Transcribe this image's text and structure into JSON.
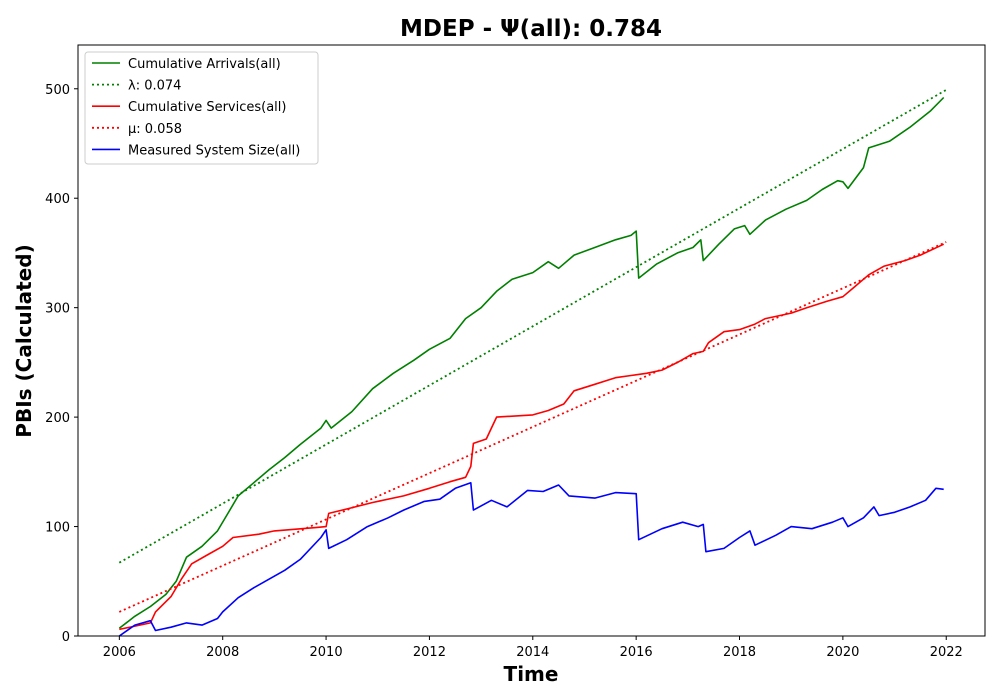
{
  "chart_data": {
    "type": "line",
    "title": "MDEP -  Ψ(all): 0.784",
    "xlabel": "Time",
    "ylabel": "PBIs (Calculated)",
    "xlim": [
      2005.2,
      2022.75
    ],
    "ylim": [
      0,
      540
    ],
    "x_ticks": [
      2006,
      2008,
      2010,
      2012,
      2014,
      2016,
      2018,
      2020,
      2022
    ],
    "y_ticks": [
      0,
      100,
      200,
      300,
      400,
      500
    ],
    "grid": false,
    "legend_position": "top-left",
    "series": [
      {
        "name": "Cumulative Arrivals(all)",
        "color": "#008000",
        "style": "solid",
        "points": [
          [
            2006.0,
            7
          ],
          [
            2006.3,
            18
          ],
          [
            2006.6,
            27
          ],
          [
            2006.9,
            38
          ],
          [
            2007.1,
            50
          ],
          [
            2007.3,
            72
          ],
          [
            2007.6,
            82
          ],
          [
            2007.9,
            96
          ],
          [
            2008.1,
            112
          ],
          [
            2008.3,
            128
          ],
          [
            2008.6,
            140
          ],
          [
            2008.9,
            152
          ],
          [
            2009.2,
            163
          ],
          [
            2009.5,
            175
          ],
          [
            2009.9,
            190
          ],
          [
            2010.0,
            197
          ],
          [
            2010.1,
            190
          ],
          [
            2010.5,
            205
          ],
          [
            2010.9,
            226
          ],
          [
            2011.3,
            240
          ],
          [
            2011.7,
            252
          ],
          [
            2012.0,
            262
          ],
          [
            2012.4,
            272
          ],
          [
            2012.7,
            290
          ],
          [
            2013.0,
            300
          ],
          [
            2013.3,
            315
          ],
          [
            2013.6,
            326
          ],
          [
            2014.0,
            332
          ],
          [
            2014.3,
            342
          ],
          [
            2014.5,
            336
          ],
          [
            2014.8,
            348
          ],
          [
            2015.2,
            355
          ],
          [
            2015.6,
            362
          ],
          [
            2015.9,
            366
          ],
          [
            2016.0,
            370
          ],
          [
            2016.05,
            327
          ],
          [
            2016.4,
            340
          ],
          [
            2016.8,
            350
          ],
          [
            2017.1,
            355
          ],
          [
            2017.25,
            362
          ],
          [
            2017.3,
            343
          ],
          [
            2017.6,
            358
          ],
          [
            2017.9,
            372
          ],
          [
            2018.1,
            375
          ],
          [
            2018.2,
            367
          ],
          [
            2018.5,
            380
          ],
          [
            2018.9,
            390
          ],
          [
            2019.3,
            398
          ],
          [
            2019.6,
            408
          ],
          [
            2019.9,
            416
          ],
          [
            2020.0,
            415
          ],
          [
            2020.1,
            409
          ],
          [
            2020.4,
            428
          ],
          [
            2020.5,
            446
          ],
          [
            2020.9,
            452
          ],
          [
            2021.3,
            465
          ],
          [
            2021.7,
            480
          ],
          [
            2021.95,
            492
          ]
        ]
      },
      {
        "name": "λ: 0.074",
        "color": "#008000",
        "style": "dotted",
        "points": [
          [
            2006.0,
            67
          ],
          [
            2022.0,
            499
          ]
        ]
      },
      {
        "name": "Cumulative Services(all)",
        "color": "#ff0000",
        "style": "solid",
        "points": [
          [
            2006.0,
            6
          ],
          [
            2006.6,
            12
          ],
          [
            2006.7,
            22
          ],
          [
            2007.0,
            36
          ],
          [
            2007.2,
            52
          ],
          [
            2007.4,
            66
          ],
          [
            2007.7,
            74
          ],
          [
            2008.0,
            82
          ],
          [
            2008.2,
            90
          ],
          [
            2008.7,
            93
          ],
          [
            2009.0,
            96
          ],
          [
            2009.8,
            99
          ],
          [
            2010.0,
            100
          ],
          [
            2010.05,
            112
          ],
          [
            2010.4,
            116
          ],
          [
            2010.9,
            122
          ],
          [
            2011.5,
            128
          ],
          [
            2012.0,
            135
          ],
          [
            2012.4,
            141
          ],
          [
            2012.7,
            145
          ],
          [
            2012.8,
            155
          ],
          [
            2012.85,
            176
          ],
          [
            2013.1,
            180
          ],
          [
            2013.2,
            190
          ],
          [
            2013.3,
            200
          ],
          [
            2014.0,
            202
          ],
          [
            2014.3,
            206
          ],
          [
            2014.6,
            212
          ],
          [
            2014.8,
            224
          ],
          [
            2015.2,
            230
          ],
          [
            2015.6,
            236
          ],
          [
            2015.9,
            238
          ],
          [
            2016.2,
            240
          ],
          [
            2016.5,
            243
          ],
          [
            2016.8,
            250
          ],
          [
            2017.1,
            258
          ],
          [
            2017.3,
            260
          ],
          [
            2017.4,
            268
          ],
          [
            2017.7,
            278
          ],
          [
            2018.0,
            280
          ],
          [
            2018.3,
            285
          ],
          [
            2018.5,
            290
          ],
          [
            2019.0,
            295
          ],
          [
            2019.3,
            300
          ],
          [
            2019.7,
            306
          ],
          [
            2020.0,
            310
          ],
          [
            2020.2,
            318
          ],
          [
            2020.5,
            330
          ],
          [
            2020.8,
            338
          ],
          [
            2021.2,
            343
          ],
          [
            2021.5,
            348
          ],
          [
            2021.95,
            358
          ]
        ]
      },
      {
        "name": "μ: 0.058",
        "color": "#ff0000",
        "style": "dotted",
        "points": [
          [
            2006.0,
            22
          ],
          [
            2022.0,
            360
          ]
        ]
      },
      {
        "name": "Measured System Size(all)",
        "color": "#0000ff",
        "style": "solid",
        "points": [
          [
            2006.0,
            0
          ],
          [
            2006.3,
            10
          ],
          [
            2006.6,
            14
          ],
          [
            2006.7,
            5
          ],
          [
            2007.0,
            8
          ],
          [
            2007.3,
            12
          ],
          [
            2007.6,
            10
          ],
          [
            2007.9,
            16
          ],
          [
            2008.0,
            22
          ],
          [
            2008.3,
            35
          ],
          [
            2008.6,
            44
          ],
          [
            2008.9,
            52
          ],
          [
            2009.2,
            60
          ],
          [
            2009.5,
            70
          ],
          [
            2009.9,
            90
          ],
          [
            2010.0,
            97
          ],
          [
            2010.05,
            80
          ],
          [
            2010.4,
            88
          ],
          [
            2010.8,
            100
          ],
          [
            2011.2,
            108
          ],
          [
            2011.5,
            115
          ],
          [
            2011.9,
            123
          ],
          [
            2012.2,
            125
          ],
          [
            2012.5,
            135
          ],
          [
            2012.8,
            140
          ],
          [
            2012.85,
            115
          ],
          [
            2013.2,
            124
          ],
          [
            2013.5,
            118
          ],
          [
            2013.9,
            133
          ],
          [
            2014.2,
            132
          ],
          [
            2014.5,
            138
          ],
          [
            2014.7,
            128
          ],
          [
            2015.2,
            126
          ],
          [
            2015.6,
            131
          ],
          [
            2016.0,
            130
          ],
          [
            2016.05,
            88
          ],
          [
            2016.5,
            98
          ],
          [
            2016.9,
            104
          ],
          [
            2017.2,
            100
          ],
          [
            2017.3,
            102
          ],
          [
            2017.35,
            77
          ],
          [
            2017.7,
            80
          ],
          [
            2018.0,
            90
          ],
          [
            2018.2,
            96
          ],
          [
            2018.3,
            83
          ],
          [
            2018.7,
            92
          ],
          [
            2019.0,
            100
          ],
          [
            2019.4,
            98
          ],
          [
            2019.8,
            104
          ],
          [
            2020.0,
            108
          ],
          [
            2020.1,
            100
          ],
          [
            2020.4,
            108
          ],
          [
            2020.6,
            118
          ],
          [
            2020.7,
            110
          ],
          [
            2021.0,
            113
          ],
          [
            2021.3,
            118
          ],
          [
            2021.6,
            124
          ],
          [
            2021.8,
            135
          ],
          [
            2021.95,
            134
          ]
        ]
      }
    ]
  }
}
